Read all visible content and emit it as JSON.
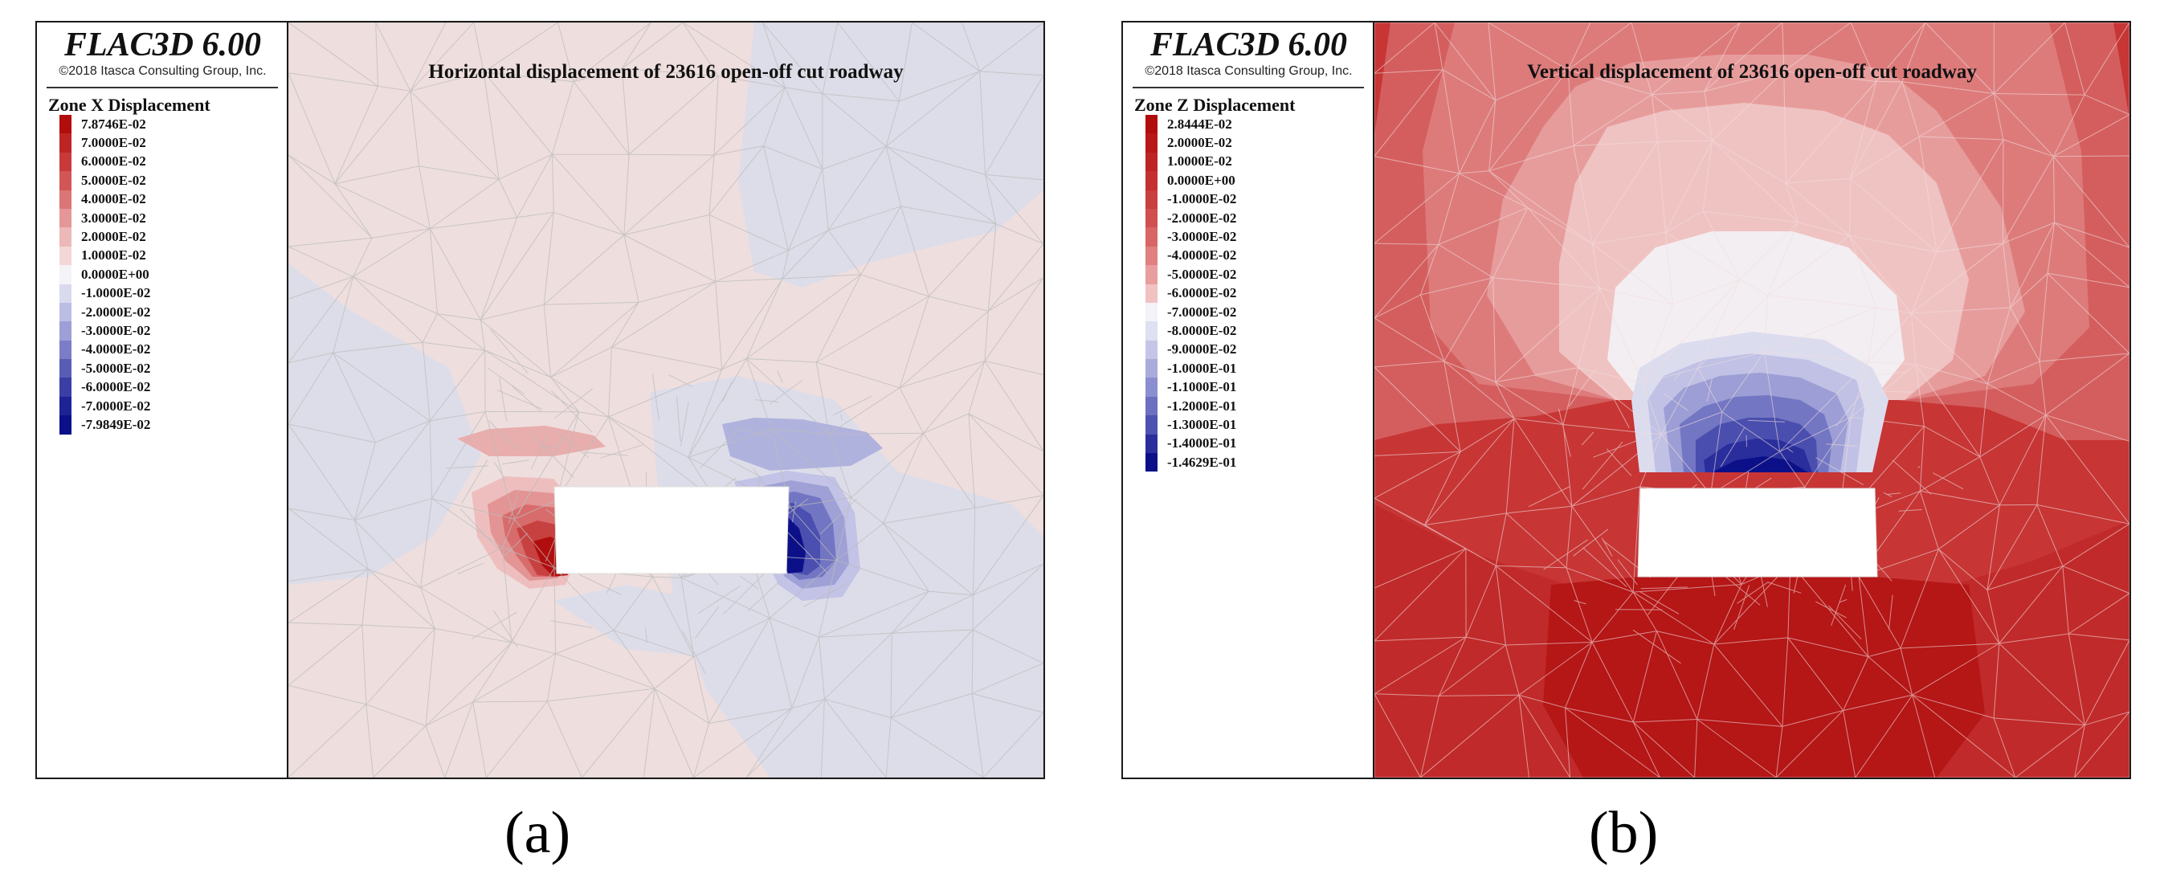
{
  "panel_a": {
    "software": "FLAC3D 6.00",
    "copyright": "©2018 Itasca Consulting Group, Inc.",
    "legend_title": "Zone X Displacement",
    "plot_title": "Horizontal displacement of 23616 open-off cut roadway",
    "caption": "(a)",
    "legend": [
      {
        "label": "7.8746E-02",
        "color": "#b20d0d"
      },
      {
        "label": "7.0000E-02",
        "color": "#be2424"
      },
      {
        "label": "6.0000E-02",
        "color": "#c83a3a"
      },
      {
        "label": "5.0000E-02",
        "color": "#d25656"
      },
      {
        "label": "4.0000E-02",
        "color": "#dc7575"
      },
      {
        "label": "3.0000E-02",
        "color": "#e59797"
      },
      {
        "label": "2.0000E-02",
        "color": "#edb8b8"
      },
      {
        "label": "1.0000E-02",
        "color": "#f3d6d6"
      },
      {
        "label": "0.0000E+00",
        "color": "#f4f3f8"
      },
      {
        "label": "-1.0000E-02",
        "color": "#d9daee"
      },
      {
        "label": "-2.0000E-02",
        "color": "#bcbde3"
      },
      {
        "label": "-3.0000E-02",
        "color": "#9d9fd6"
      },
      {
        "label": "-4.0000E-02",
        "color": "#7b7ec6"
      },
      {
        "label": "-5.0000E-02",
        "color": "#595cb5"
      },
      {
        "label": "-6.0000E-02",
        "color": "#3a3ea5"
      },
      {
        "label": "-7.0000E-02",
        "color": "#1e2297"
      },
      {
        "label": "-7.9849E-02",
        "color": "#0c1088"
      }
    ]
  },
  "panel_b": {
    "software": "FLAC3D 6.00",
    "copyright": "©2018 Itasca Consulting Group, Inc.",
    "legend_title": "Zone Z Displacement",
    "plot_title": "Vertical displacement of 23616 open-off cut roadway",
    "caption": "(b)",
    "legend": [
      {
        "label": "2.8444E-02",
        "color": "#b20d0d"
      },
      {
        "label": "2.0000E-02",
        "color": "#b81818"
      },
      {
        "label": "1.0000E-02",
        "color": "#be2424"
      },
      {
        "label": "0.0000E+00",
        "color": "#c43131"
      },
      {
        "label": "-1.0000E-02",
        "color": "#ca3f3f"
      },
      {
        "label": "-2.0000E-02",
        "color": "#d05050"
      },
      {
        "label": "-3.0000E-02",
        "color": "#d86666"
      },
      {
        "label": "-4.0000E-02",
        "color": "#e08080"
      },
      {
        "label": "-5.0000E-02",
        "color": "#e89e9e"
      },
      {
        "label": "-6.0000E-02",
        "color": "#f0c2c2"
      },
      {
        "label": "-7.0000E-02",
        "color": "#f4f3f8"
      },
      {
        "label": "-8.0000E-02",
        "color": "#dfe0f1"
      },
      {
        "label": "-9.0000E-02",
        "color": "#c5c6e7"
      },
      {
        "label": "-1.0000E-01",
        "color": "#a9abdb"
      },
      {
        "label": "-1.1000E-01",
        "color": "#8c8fcf"
      },
      {
        "label": "-1.2000E-01",
        "color": "#6d70c0"
      },
      {
        "label": "-1.3000E-01",
        "color": "#4d51b0"
      },
      {
        "label": "-1.4000E-01",
        "color": "#2a2e9c"
      },
      {
        "label": "-1.4629E-01",
        "color": "#0c1088"
      }
    ]
  }
}
